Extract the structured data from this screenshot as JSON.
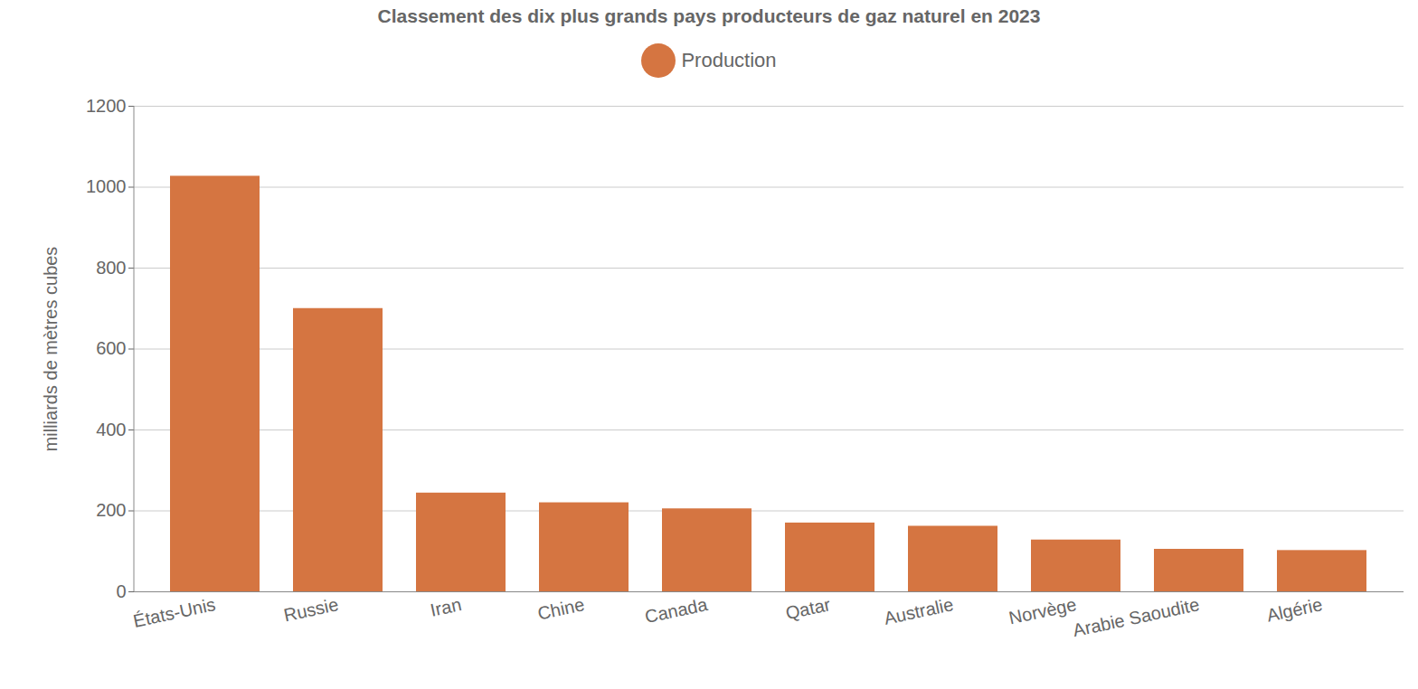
{
  "chart_data": {
    "type": "bar",
    "title": "Classement des dix plus grands pays producteurs de gaz naturel en 2023",
    "y_label": "milliards de mètres cubes",
    "categories": [
      "États-Unis",
      "Russie",
      "Iran",
      "Chine",
      "Canada",
      "Qatar",
      "Australie",
      "Norvège",
      "Arabie Saoudite",
      "Algérie"
    ],
    "series": [
      {
        "name": "Production",
        "color": "#d57541",
        "values": [
          1027,
          700,
          244,
          220,
          205,
          170,
          162,
          128,
          105,
          102
        ]
      }
    ],
    "ylim": [
      0,
      1200
    ],
    "yticks": [
      0,
      200,
      400,
      600,
      800,
      1000,
      1200
    ],
    "grid": true,
    "legend": "top"
  }
}
